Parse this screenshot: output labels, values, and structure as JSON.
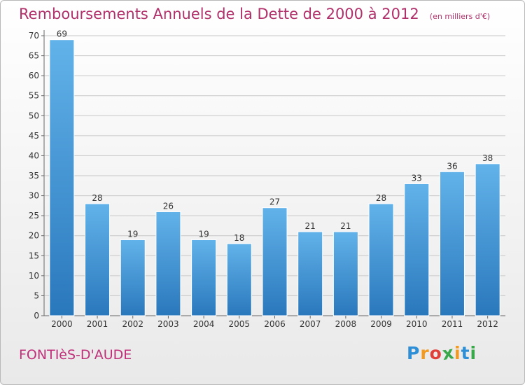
{
  "title": "Remboursements Annuels de la Dette de 2000 à 2012",
  "subtitle": "(en milliers d'€)",
  "commune": "FONTIèS-D'AUDE",
  "logo": {
    "text": "Proxiti",
    "letters": [
      {
        "ch": "P",
        "color": "#2e8fd6"
      },
      {
        "ch": "r",
        "color": "#f39a1e"
      },
      {
        "ch": "o",
        "color": "#e0403a"
      },
      {
        "ch": "x",
        "color": "#3aa84a"
      },
      {
        "ch": "i",
        "color": "#f39a1e"
      },
      {
        "ch": "t",
        "color": "#2e8fd6"
      },
      {
        "ch": "i",
        "color": "#3aa84a"
      }
    ]
  },
  "colors": {
    "bar_top": "#62b2ea",
    "bar_bottom": "#2a78bc",
    "title": "#b0306a",
    "axis": "#666666",
    "grid": "#c8c8c8"
  },
  "chart_data": {
    "type": "bar",
    "categories": [
      "2000",
      "2001",
      "2002",
      "2003",
      "2004",
      "2005",
      "2006",
      "2007",
      "2008",
      "2009",
      "2010",
      "2011",
      "2012"
    ],
    "values": [
      69,
      28,
      19,
      26,
      19,
      18,
      27,
      21,
      21,
      28,
      33,
      36,
      38
    ],
    "ylim": [
      0,
      70
    ],
    "yticks": [
      0,
      5,
      10,
      15,
      20,
      25,
      30,
      35,
      40,
      45,
      50,
      55,
      60,
      65,
      70
    ],
    "grid": true,
    "data_labels": true
  }
}
